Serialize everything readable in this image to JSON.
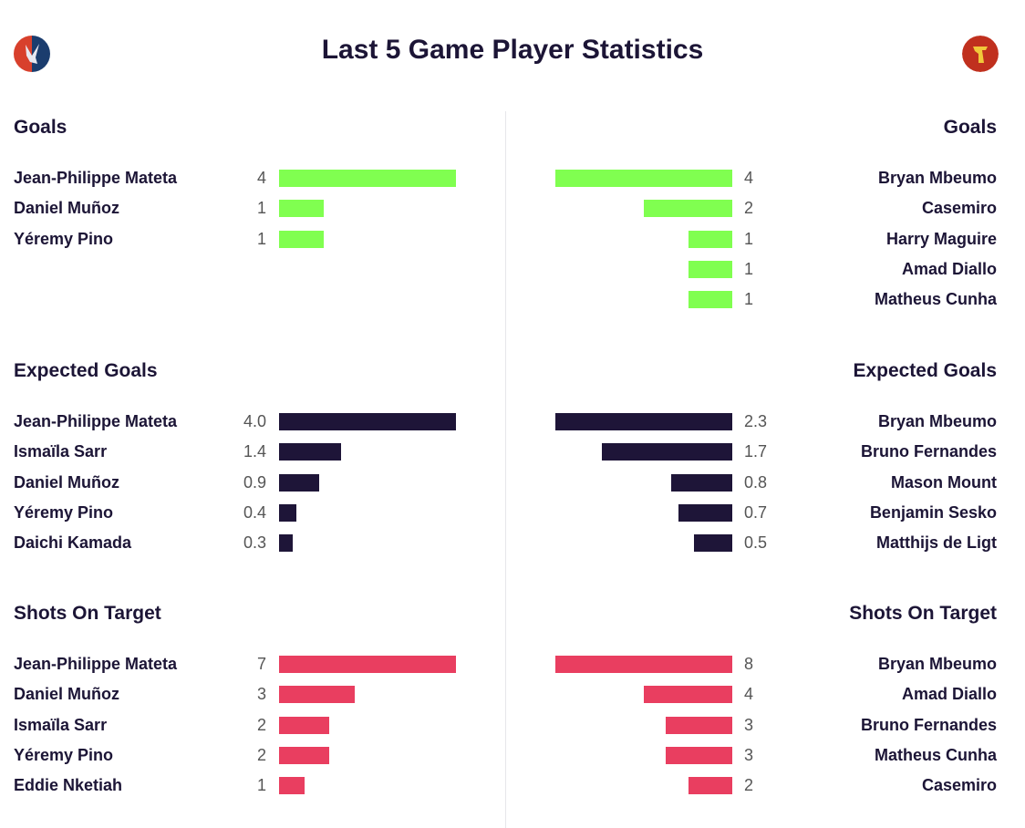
{
  "title": "Last 5 Game Player Statistics",
  "home_logo": "crystal-palace-crest",
  "away_logo": "manchester-united-crest",
  "chart_data": [
    {
      "type": "bar",
      "title": "Goals",
      "color": "#80ff50",
      "side": "home",
      "categories": [
        "Jean-Philippe Mateta",
        "Daniel Muñoz",
        "Yéremy Pino"
      ],
      "values": [
        4,
        1,
        1
      ],
      "labels": [
        "4",
        "1",
        "1"
      ]
    },
    {
      "type": "bar",
      "title": "Goals",
      "color": "#80ff50",
      "side": "away",
      "categories": [
        "Bryan Mbeumo",
        "Casemiro",
        "Harry Maguire",
        "Amad Diallo",
        "Matheus Cunha"
      ],
      "values": [
        4,
        2,
        1,
        1,
        1
      ],
      "labels": [
        "4",
        "2",
        "1",
        "1",
        "1"
      ]
    },
    {
      "type": "bar",
      "title": "Expected Goals",
      "color": "#1e1538",
      "side": "home",
      "categories": [
        "Jean-Philippe Mateta",
        "Ismaïla Sarr",
        "Daniel Muñoz",
        "Yéremy Pino",
        "Daichi Kamada"
      ],
      "values": [
        4.0,
        1.4,
        0.9,
        0.4,
        0.3
      ],
      "labels": [
        "4.0",
        "1.4",
        "0.9",
        "0.4",
        "0.3"
      ]
    },
    {
      "type": "bar",
      "title": "Expected Goals",
      "color": "#1e1538",
      "side": "away",
      "categories": [
        "Bryan Mbeumo",
        "Bruno Fernandes",
        "Mason Mount",
        "Benjamin Sesko",
        "Matthijs de Ligt"
      ],
      "values": [
        2.3,
        1.7,
        0.8,
        0.7,
        0.5
      ],
      "labels": [
        "2.3",
        "1.7",
        "0.8",
        "0.7",
        "0.5"
      ]
    },
    {
      "type": "bar",
      "title": "Shots On Target",
      "color": "#e93e60",
      "side": "home",
      "categories": [
        "Jean-Philippe Mateta",
        "Daniel Muñoz",
        "Ismaïla Sarr",
        "Yéremy Pino",
        "Eddie Nketiah"
      ],
      "values": [
        7,
        3,
        2,
        2,
        1
      ],
      "labels": [
        "7",
        "3",
        "2",
        "2",
        "1"
      ]
    },
    {
      "type": "bar",
      "title": "Shots On Target",
      "color": "#e93e60",
      "side": "away",
      "categories": [
        "Bryan Mbeumo",
        "Amad Diallo",
        "Bruno Fernandes",
        "Matheus Cunha",
        "Casemiro"
      ],
      "values": [
        8,
        4,
        3,
        3,
        2
      ],
      "labels": [
        "8",
        "4",
        "3",
        "3",
        "2"
      ]
    }
  ]
}
